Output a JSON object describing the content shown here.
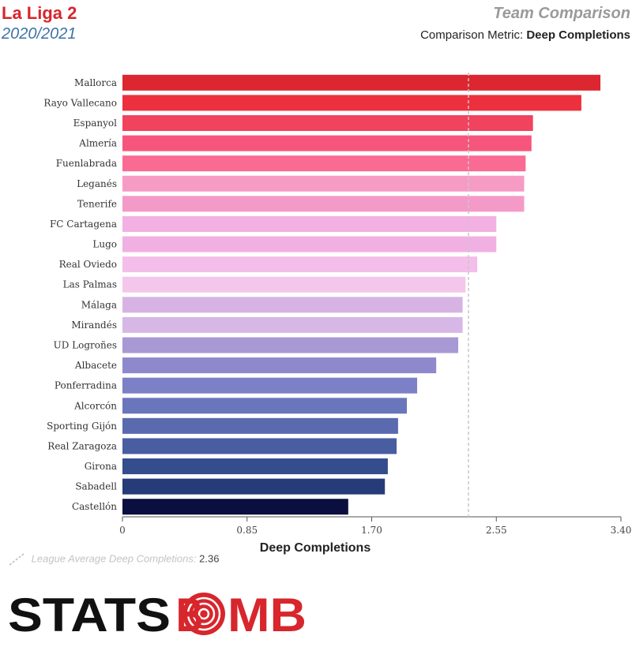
{
  "header": {
    "league": "La Liga 2",
    "season": "2020/2021",
    "right_title": "Team Comparison",
    "metric_label": "Comparison Metric:",
    "metric_name": "Deep Completions"
  },
  "legend": {
    "label": "League Average Deep Completions:",
    "value": "2.36"
  },
  "logo": {
    "text_left": "STATS",
    "text_right": "BMB"
  },
  "chart_data": {
    "type": "bar",
    "orientation": "horizontal",
    "xlabel": "Deep Completions",
    "xlim": [
      0,
      3.4
    ],
    "ticks": [
      "0",
      "0.85",
      "1.70",
      "2.55",
      "3.40"
    ],
    "tick_values": [
      0,
      0.85,
      1.7,
      2.55,
      3.4
    ],
    "reference_line": 2.36,
    "categories": [
      "Mallorca",
      "Rayo Vallecano",
      "Espanyol",
      "Almería",
      "Fuenlabrada",
      "Leganés",
      "Tenerife",
      "FC Cartagena",
      "Lugo",
      "Real Oviedo",
      "Las Palmas",
      "Málaga",
      "Mirandés",
      "UD Logroñes",
      "Albacete",
      "Ponferradina",
      "Alcorcón",
      "Sporting Gijón",
      "Real Zaragoza",
      "Girona",
      "Sabadell",
      "Castellón"
    ],
    "values": [
      3.26,
      3.13,
      2.8,
      2.79,
      2.75,
      2.74,
      2.74,
      2.55,
      2.55,
      2.42,
      2.34,
      2.32,
      2.32,
      2.29,
      2.14,
      2.01,
      1.94,
      1.88,
      1.87,
      1.81,
      1.79,
      1.54
    ],
    "colors": [
      "#dc2630",
      "#ed303d",
      "#f1425e",
      "#f7567c",
      "#f96b93",
      "#f69cc4",
      "#f49ac9",
      "#f3b0e2",
      "#f1b0e2",
      "#f3bee9",
      "#f4c6ec",
      "#d7b3e4",
      "#d6b7e6",
      "#a898d4",
      "#8e88cc",
      "#7b80c7",
      "#6a76bc",
      "#5a6aaf",
      "#495da1",
      "#344d8d",
      "#253c78",
      "#0a0f40"
    ]
  }
}
